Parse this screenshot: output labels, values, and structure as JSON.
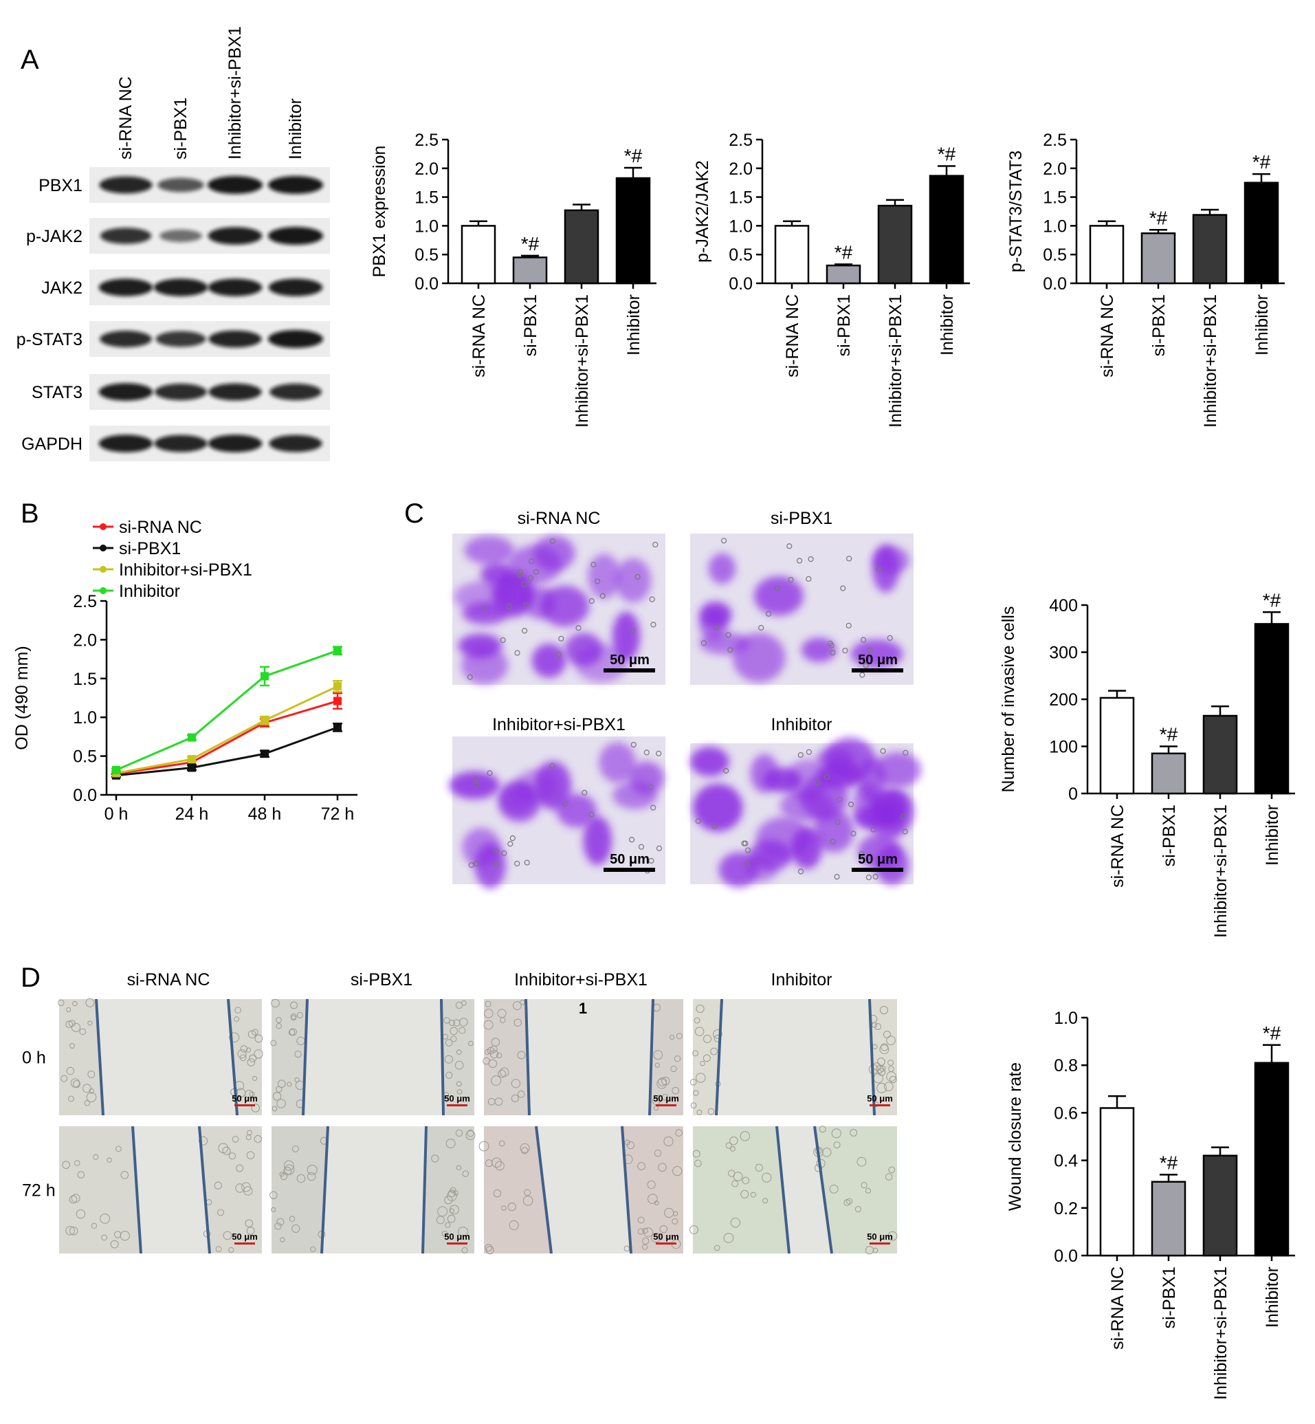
{
  "panels": {
    "A": {
      "letter": "A",
      "lanes": [
        "si-RNA NC",
        "si-PBX1",
        "Inhibitor+si-PBX1",
        "Inhibitor"
      ],
      "bands": [
        "PBX1",
        "p-JAK2",
        "JAK2",
        "p-STAT3",
        "STAT3",
        "GAPDH"
      ],
      "band_intensity": [
        [
          0.9,
          0.55,
          1.0,
          1.0
        ],
        [
          0.8,
          0.35,
          0.95,
          1.0
        ],
        [
          0.95,
          0.95,
          0.95,
          0.95
        ],
        [
          0.85,
          0.75,
          0.9,
          1.0
        ],
        [
          0.95,
          0.85,
          0.9,
          0.85
        ],
        [
          0.95,
          0.9,
          0.95,
          0.9
        ]
      ]
    },
    "B": {
      "letter": "B"
    },
    "C": {
      "letter": "C",
      "image_titles": [
        "si-RNA NC",
        "si-PBX1",
        "Inhibitor+si-PBX1",
        "Inhibitor"
      ],
      "scale_bar": "50 μm",
      "stain_density": [
        0.65,
        0.25,
        0.35,
        0.95
      ]
    },
    "D": {
      "letter": "D",
      "column_titles": [
        "si-RNA NC",
        "si-PBX1",
        "Inhibitor+si-PBX1",
        "Inhibitor"
      ],
      "row_labels": [
        "0 h",
        "72 h"
      ],
      "scale_bar": "50 μm",
      "stray_mark": "1"
    }
  },
  "colors": {
    "si_rna_nc": "#ffffff",
    "si_pbx1": "#a0a0a8",
    "inhibitor_si_pbx1": "#383838",
    "inhibitor": "#000000",
    "line_si_rna_nc": "#ff1a1a",
    "line_si_pbx1": "#111111",
    "line_inhibitor_si_pbx1": "#c8c21e",
    "line_inhibitor": "#22dd22",
    "crystal_violet": "#8a2be2",
    "wound_line": "#3f5f8a"
  },
  "chart_data": [
    {
      "id": "A1",
      "type": "bar",
      "categories": [
        "si-RNA NC",
        "si-PBX1",
        "Inhibitor+si-PBX1",
        "Inhibitor"
      ],
      "values": [
        1.0,
        0.45,
        1.27,
        1.83
      ],
      "errors": [
        0.08,
        0.03,
        0.1,
        0.18
      ],
      "annotations": [
        "",
        "*#",
        "",
        "*#"
      ],
      "ylabel": "PBX1 expression",
      "ylim": [
        0,
        2.5
      ],
      "yticks": [
        "0.0",
        "0.5",
        "1.0",
        "1.5",
        "2.0",
        "2.5"
      ]
    },
    {
      "id": "A2",
      "type": "bar",
      "categories": [
        "si-RNA NC",
        "si-PBX1",
        "Inhibitor+si-PBX1",
        "Inhibitor"
      ],
      "values": [
        1.0,
        0.31,
        1.35,
        1.87
      ],
      "errors": [
        0.08,
        0.02,
        0.1,
        0.17
      ],
      "annotations": [
        "",
        "*#",
        "",
        "*#"
      ],
      "ylabel": "p-JAK2/JAK2",
      "ylim": [
        0,
        2.5
      ],
      "yticks": [
        "0.0",
        "0.5",
        "1.0",
        "1.5",
        "2.0",
        "2.5"
      ]
    },
    {
      "id": "A3",
      "type": "bar",
      "categories": [
        "si-RNA NC",
        "si-PBX1",
        "Inhibitor+si-PBX1",
        "Inhibitor"
      ],
      "values": [
        1.0,
        0.87,
        1.19,
        1.75
      ],
      "errors": [
        0.08,
        0.06,
        0.09,
        0.15
      ],
      "annotations": [
        "",
        "*#",
        "",
        "*#"
      ],
      "ylabel": "p-STAT3/STAT3",
      "ylim": [
        0,
        2.5
      ],
      "yticks": [
        "0.0",
        "0.5",
        "1.0",
        "1.5",
        "2.0",
        "2.5"
      ]
    },
    {
      "id": "B",
      "type": "line",
      "x": [
        "0 h",
        "24 h",
        "48 h",
        "72 h"
      ],
      "series": [
        {
          "name": "si-RNA NC",
          "values": [
            0.27,
            0.42,
            0.93,
            1.21
          ],
          "errors": [
            0.03,
            0.03,
            0.05,
            0.1
          ]
        },
        {
          "name": "si-PBX1",
          "values": [
            0.25,
            0.35,
            0.53,
            0.87
          ],
          "errors": [
            0.02,
            0.03,
            0.04,
            0.05
          ]
        },
        {
          "name": "Inhibitor+si-PBX1",
          "values": [
            0.28,
            0.46,
            0.96,
            1.4
          ],
          "errors": [
            0.03,
            0.03,
            0.05,
            0.07
          ]
        },
        {
          "name": "Inhibitor",
          "values": [
            0.32,
            0.74,
            1.53,
            1.86
          ],
          "errors": [
            0.02,
            0.03,
            0.12,
            0.05
          ]
        }
      ],
      "ylabel": "OD (490 mm)",
      "ylim": [
        0,
        2.5
      ],
      "yticks": [
        "0.0",
        "0.5",
        "1.0",
        "1.5",
        "2.0",
        "2.5"
      ],
      "legend": "top-left"
    },
    {
      "id": "C",
      "type": "bar",
      "categories": [
        "si-RNA NC",
        "si-PBX1",
        "Inhibitor+si-PBX1",
        "Inhibitor"
      ],
      "values": [
        203,
        85,
        165,
        360
      ],
      "errors": [
        15,
        15,
        20,
        25
      ],
      "annotations": [
        "",
        "*#",
        "",
        "*#"
      ],
      "ylabel": "Number of invasive cells",
      "ylim": [
        0,
        400
      ],
      "yticks": [
        "0",
        "100",
        "200",
        "300",
        "400"
      ]
    },
    {
      "id": "D",
      "type": "bar",
      "categories": [
        "si-RNA NC",
        "si-PBX1",
        "Inhibitor+si-PBX1",
        "Inhibitor"
      ],
      "values": [
        0.62,
        0.31,
        0.42,
        0.81
      ],
      "errors": [
        0.05,
        0.03,
        0.035,
        0.075
      ],
      "annotations": [
        "",
        "*#",
        "",
        "*#"
      ],
      "ylabel": "Wound closure rate",
      "ylim": [
        0,
        1.0
      ],
      "yticks": [
        "0.0",
        "0.2",
        "0.4",
        "0.6",
        "0.8",
        "1.0"
      ]
    }
  ]
}
